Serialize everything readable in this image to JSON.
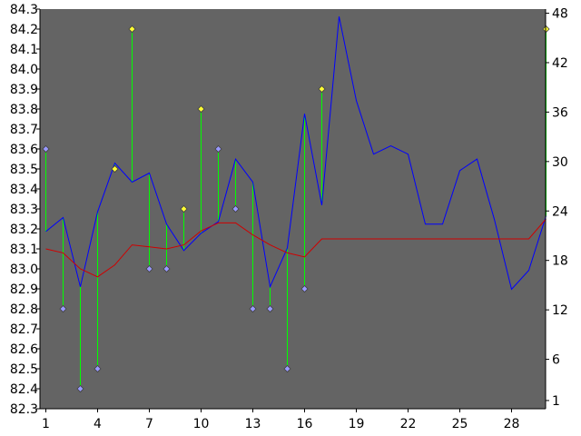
{
  "chart_data": {
    "type": "line",
    "title": "",
    "xlabel": "",
    "ylabel": "",
    "x": [
      1,
      2,
      3,
      4,
      5,
      6,
      7,
      8,
      9,
      10,
      11,
      12,
      13,
      14,
      15,
      16,
      17,
      18,
      19,
      20,
      21,
      22,
      23,
      24,
      25,
      26,
      27,
      28,
      29,
      30
    ],
    "x_tick_labels": [
      "1",
      "4",
      "7",
      "10",
      "13",
      "16",
      "19",
      "22",
      "25",
      "28"
    ],
    "x_tick_values": [
      1,
      4,
      7,
      10,
      13,
      16,
      19,
      22,
      25,
      28
    ],
    "left_axis": {
      "ylim": [
        82.3,
        84.3
      ],
      "tick_labels": [
        "82.3",
        "82.4",
        "82.5",
        "82.6",
        "82.7",
        "82.8",
        "82.9",
        "83.0",
        "83.1",
        "83.2",
        "83.3",
        "83.4",
        "83.5",
        "83.6",
        "83.7",
        "83.8",
        "83.9",
        "84.0",
        "84.1",
        "84.2",
        "84.3"
      ],
      "tick_values": [
        82.3,
        82.4,
        82.5,
        82.6,
        82.7,
        82.8,
        82.9,
        83.0,
        83.1,
        83.2,
        83.3,
        83.4,
        83.5,
        83.6,
        83.7,
        83.8,
        83.9,
        84.0,
        84.1,
        84.2,
        84.3
      ]
    },
    "right_axis": {
      "ylim": [
        0,
        48.5
      ],
      "tick_labels": [
        "1",
        "6",
        "12",
        "18",
        "24",
        "30",
        "36",
        "42",
        "48"
      ],
      "tick_values": [
        1,
        6,
        12,
        18,
        24,
        30,
        36,
        42,
        48
      ]
    },
    "series": [
      {
        "role": "price_line",
        "axis": "right",
        "color": "#0000ff",
        "values": [
          21.5,
          23.2,
          14.8,
          23.9,
          29.8,
          27.5,
          28.6,
          22.4,
          19.2,
          21.3,
          22.7,
          30.3,
          27.5,
          14.8,
          19.5,
          35.8,
          24.7,
          47.6,
          37.4,
          30.9,
          31.9,
          30.9,
          22.4,
          22.4,
          28.9,
          30.3,
          23.0,
          14.5,
          16.8,
          23.4
        ]
      },
      {
        "role": "moving_average",
        "axis": "left",
        "color": "#d00000",
        "values": [
          83.1,
          83.08,
          83.0,
          82.96,
          83.02,
          83.12,
          83.11,
          83.1,
          83.12,
          83.19,
          83.23,
          83.23,
          83.17,
          83.12,
          83.08,
          83.06,
          83.15,
          83.15,
          83.15,
          83.15,
          83.15,
          83.15,
          83.15,
          83.15,
          83.15,
          83.15,
          83.15,
          83.15,
          83.15,
          83.25
        ]
      },
      {
        "role": "markers",
        "axis": "left",
        "stem_color": "#00ff00",
        "up_color": "#ffff33",
        "down_color": "#9999ff",
        "points": [
          {
            "x": 1,
            "y": 83.6,
            "dir": "down"
          },
          {
            "x": 2,
            "y": 82.8,
            "dir": "down"
          },
          {
            "x": 3,
            "y": 82.4,
            "dir": "down"
          },
          {
            "x": 4,
            "y": 82.5,
            "dir": "down"
          },
          {
            "x": 5,
            "y": 83.5,
            "dir": "up"
          },
          {
            "x": 6,
            "y": 84.2,
            "dir": "up"
          },
          {
            "x": 7,
            "y": 83.0,
            "dir": "down"
          },
          {
            "x": 8,
            "y": 83.0,
            "dir": "down"
          },
          {
            "x": 9,
            "y": 83.3,
            "dir": "up"
          },
          {
            "x": 10,
            "y": 83.8,
            "dir": "up"
          },
          {
            "x": 11,
            "y": 83.6,
            "dir": "down"
          },
          {
            "x": 12,
            "y": 83.3,
            "dir": "down"
          },
          {
            "x": 13,
            "y": 82.8,
            "dir": "down"
          },
          {
            "x": 14,
            "y": 82.8,
            "dir": "down"
          },
          {
            "x": 15,
            "y": 82.5,
            "dir": "down"
          },
          {
            "x": 16,
            "y": 82.9,
            "dir": "down"
          },
          {
            "x": 17,
            "y": 83.9,
            "dir": "up"
          },
          {
            "x": 30,
            "y": 84.2,
            "dir": "up"
          }
        ]
      }
    ],
    "colors": {
      "plot_background": "#646464",
      "axis": "#000000"
    },
    "grid": false,
    "legend": "none"
  }
}
